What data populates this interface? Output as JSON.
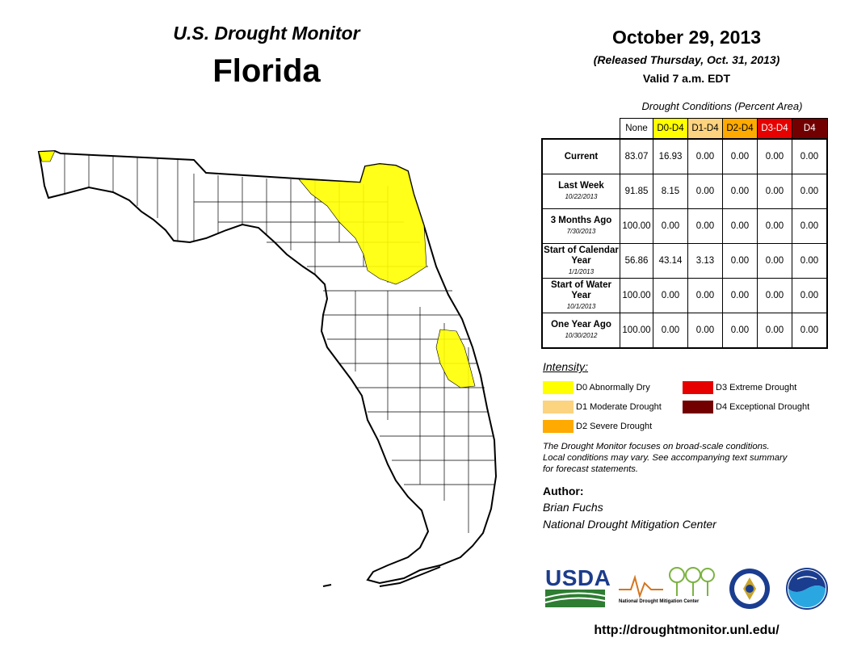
{
  "header": {
    "subtitle": "U.S. Drought Monitor",
    "state": "Florida",
    "date": "October 29, 2013",
    "released": "(Released Thursday, Oct. 31, 2013)",
    "valid": "Valid 7 a.m. EDT"
  },
  "table": {
    "caption": "Drought Conditions (Percent Area)",
    "columns": [
      {
        "label": "None",
        "color": "#ffffff",
        "text_color": "#000000"
      },
      {
        "label": "D0-D4",
        "color": "#ffff00",
        "text_color": "#000000"
      },
      {
        "label": "D1-D4",
        "color": "#fcd37f",
        "text_color": "#000000"
      },
      {
        "label": "D2-D4",
        "color": "#ffaa00",
        "text_color": "#000000"
      },
      {
        "label": "D3-D4",
        "color": "#e60000",
        "text_color": "#ffffff"
      },
      {
        "label": "D4",
        "color": "#730000",
        "text_color": "#ffffff"
      }
    ],
    "rows": [
      {
        "label": "Current",
        "date": "",
        "values": [
          "83.07",
          "16.93",
          "0.00",
          "0.00",
          "0.00",
          "0.00"
        ]
      },
      {
        "label": "Last Week",
        "date": "10/22/2013",
        "values": [
          "91.85",
          "8.15",
          "0.00",
          "0.00",
          "0.00",
          "0.00"
        ]
      },
      {
        "label": "3 Months Ago",
        "date": "7/30/2013",
        "values": [
          "100.00",
          "0.00",
          "0.00",
          "0.00",
          "0.00",
          "0.00"
        ]
      },
      {
        "label": "Start of Calendar Year",
        "date": "1/1/2013",
        "values": [
          "56.86",
          "43.14",
          "3.13",
          "0.00",
          "0.00",
          "0.00"
        ]
      },
      {
        "label": "Start of Water Year",
        "date": "10/1/2013",
        "values": [
          "100.00",
          "0.00",
          "0.00",
          "0.00",
          "0.00",
          "0.00"
        ]
      },
      {
        "label": "One Year Ago",
        "date": "10/30/2012",
        "values": [
          "100.00",
          "0.00",
          "0.00",
          "0.00",
          "0.00",
          "0.00"
        ]
      }
    ]
  },
  "legend": {
    "title": "Intensity:",
    "items": [
      {
        "label": "D0 Abnormally Dry",
        "color": "#ffff00"
      },
      {
        "label": "D1 Moderate Drought",
        "color": "#fcd37f"
      },
      {
        "label": "D2 Severe Drought",
        "color": "#ffaa00"
      },
      {
        "label": "D3 Extreme Drought",
        "color": "#e60000"
      },
      {
        "label": "D4 Exceptional Drought",
        "color": "#730000"
      }
    ]
  },
  "note": {
    "line1": "The Drought Monitor focuses on broad-scale conditions.",
    "line2": "Local conditions may vary. See accompanying text summary",
    "line3": "for forecast statements."
  },
  "author": {
    "heading": "Author:",
    "name": "Brian Fuchs",
    "org": "National Drought Mitigation Center"
  },
  "logos": {
    "usda": "USDA",
    "ndmc_caption": "National Drought Mitigation Center",
    "doc_seal": "department-of-commerce-seal-icon",
    "noaa": "noaa-logo-icon"
  },
  "url": "http://droughtmonitor.unl.edu/"
}
